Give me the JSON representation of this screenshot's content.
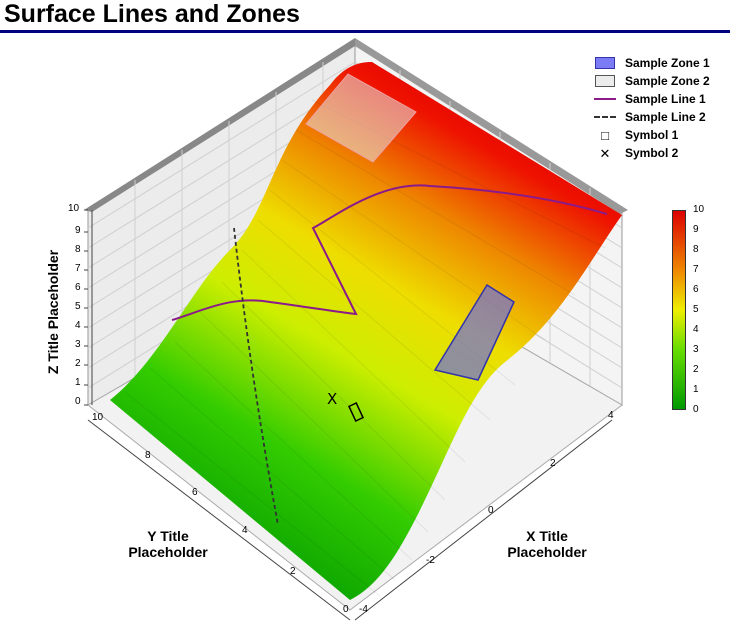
{
  "title": "Surface Lines and Zones",
  "chart_data": {
    "type": "surface",
    "title": "Surface Lines and Zones",
    "x_axis": {
      "label": "X Title Placeholder",
      "range": [
        -4,
        4
      ],
      "ticks": [
        "-4",
        "-2",
        "0",
        "2",
        "4"
      ]
    },
    "y_axis": {
      "label": "Y Title Placeholder",
      "range": [
        0,
        10
      ],
      "ticks": [
        "0",
        "2",
        "4",
        "6",
        "8",
        "10"
      ]
    },
    "z_axis": {
      "label": "Z Title Placeholder",
      "range": [
        0,
        10
      ],
      "ticks": [
        "0",
        "1",
        "2",
        "3",
        "4",
        "5",
        "6",
        "7",
        "8",
        "9",
        "10"
      ]
    },
    "colorbar": {
      "range": [
        0,
        10
      ],
      "ticks": [
        "0",
        "1",
        "2",
        "3",
        "4",
        "5",
        "6",
        "7",
        "8",
        "9",
        "10"
      ]
    },
    "legend": [
      {
        "label": "Sample Zone 1",
        "kind": "zone",
        "color": "#7b7bf5"
      },
      {
        "label": "Sample Zone 2",
        "kind": "zone",
        "color": "#ececec"
      },
      {
        "label": "Sample Line 1",
        "kind": "line",
        "color": "#8b1a8b"
      },
      {
        "label": "Sample Line 2",
        "kind": "dashed-line",
        "color": "#333333"
      },
      {
        "label": "Symbol 1",
        "kind": "symbol",
        "symbol": "□"
      },
      {
        "label": "Symbol 2",
        "kind": "symbol",
        "symbol": "✕"
      }
    ],
    "legend_position": "top-right",
    "grid": true
  }
}
